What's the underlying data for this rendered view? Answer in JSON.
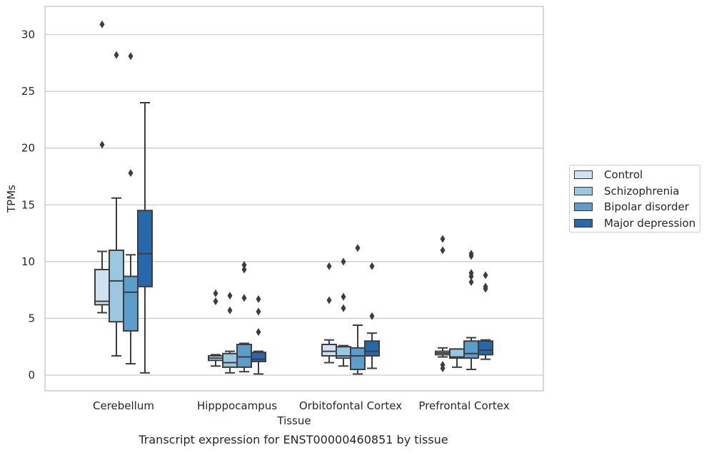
{
  "chart_data": {
    "type": "box",
    "caption": "Transcript expression for ENST00000460851 by tissue",
    "xlabel": "Tissue",
    "ylabel": "TPMs",
    "ylim": [
      -1.3,
      32.5
    ],
    "yticks": [
      0,
      5,
      10,
      15,
      20,
      25,
      30
    ],
    "grid": "horizontal",
    "legend_position": "right",
    "categories": [
      "Cerebellum",
      "Hipppocampus",
      "Orbitofontal Cortex",
      "Prefrontal Cortex"
    ],
    "series": [
      {
        "name": "Control",
        "color": "#d0e1f2",
        "boxes": [
          {
            "whislo": 5.5,
            "q1": 6.2,
            "med": 6.5,
            "q3": 9.3,
            "whishi": 10.9,
            "fliers": [
              20.3,
              30.9
            ]
          },
          {
            "whislo": 0.8,
            "q1": 1.3,
            "med": 1.5,
            "q3": 1.7,
            "whishi": 1.8,
            "fliers": [
              6.5,
              7.2
            ]
          },
          {
            "whislo": 1.1,
            "q1": 1.7,
            "med": 2.1,
            "q3": 2.7,
            "whishi": 3.1,
            "fliers": [
              6.6,
              9.6
            ]
          },
          {
            "whislo": 1.6,
            "q1": 1.8,
            "med": 1.95,
            "q3": 2.1,
            "whishi": 2.4,
            "fliers": [
              0.6,
              0.9,
              11.0,
              12.0
            ]
          }
        ]
      },
      {
        "name": "Schizophrenia",
        "color": "#9ac8e0",
        "boxes": [
          {
            "whislo": 1.7,
            "q1": 4.7,
            "med": 8.3,
            "q3": 11.0,
            "whishi": 15.6,
            "fliers": [
              28.2
            ]
          },
          {
            "whislo": 0.2,
            "q1": 0.7,
            "med": 1.1,
            "q3": 1.9,
            "whishi": 2.1,
            "fliers": [
              5.7,
              7.0
            ]
          },
          {
            "whislo": 0.8,
            "q1": 1.5,
            "med": 1.7,
            "q3": 2.5,
            "whishi": 2.6,
            "fliers": [
              5.9,
              6.9,
              10.0
            ]
          },
          {
            "whislo": 0.7,
            "q1": 1.5,
            "med": 1.6,
            "q3": 2.3,
            "whishi": 2.3,
            "fliers": []
          }
        ]
      },
      {
        "name": "Bipolar disorder",
        "color": "#5a9ec9",
        "boxes": [
          {
            "whislo": 1.0,
            "q1": 3.9,
            "med": 7.3,
            "q3": 8.7,
            "whishi": 10.6,
            "fliers": [
              17.8,
              28.1
            ]
          },
          {
            "whislo": 0.3,
            "q1": 0.7,
            "med": 1.6,
            "q3": 2.7,
            "whishi": 2.8,
            "fliers": [
              6.8,
              9.3,
              9.7
            ]
          },
          {
            "whislo": 0.1,
            "q1": 0.5,
            "med": 1.7,
            "q3": 2.4,
            "whishi": 4.4,
            "fliers": [
              11.2
            ]
          },
          {
            "whislo": 0.5,
            "q1": 1.5,
            "med": 1.9,
            "q3": 3.0,
            "whishi": 3.3,
            "fliers": [
              8.2,
              8.7,
              9.0,
              10.5,
              10.7
            ]
          }
        ]
      },
      {
        "name": "Major depression",
        "color": "#2767ab",
        "boxes": [
          {
            "whislo": 0.2,
            "q1": 7.8,
            "med": 10.7,
            "q3": 14.5,
            "whishi": 24.0,
            "fliers": []
          },
          {
            "whislo": 0.1,
            "q1": 1.2,
            "med": 1.4,
            "q3": 2.0,
            "whishi": 2.1,
            "fliers": [
              3.8,
              5.6,
              6.7
            ]
          },
          {
            "whislo": 0.6,
            "q1": 1.7,
            "med": 2.1,
            "q3": 3.0,
            "whishi": 3.7,
            "fliers": [
              5.2,
              9.6
            ]
          },
          {
            "whislo": 1.4,
            "q1": 1.8,
            "med": 2.2,
            "q3": 3.0,
            "whishi": 3.1,
            "fliers": [
              7.6,
              7.8,
              8.8
            ]
          }
        ]
      }
    ]
  }
}
